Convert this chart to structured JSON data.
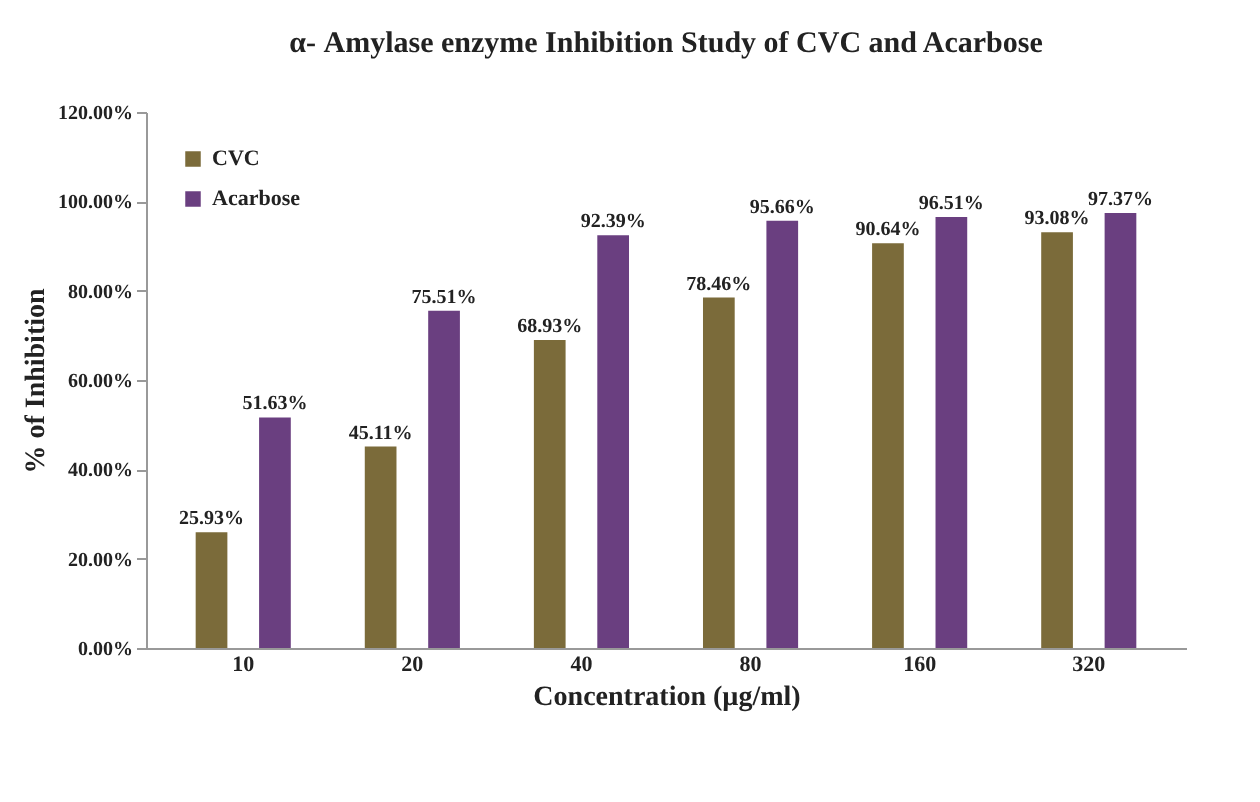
{
  "chart_data": {
    "type": "bar",
    "title": "α- Amylase enzyme Inhibition Study of CVC and Acarbose",
    "xlabel": "Concentration (µg/ml)",
    "ylabel": "% of Inhibition",
    "categories": [
      "10",
      "20",
      "40",
      "80",
      "160",
      "320"
    ],
    "series": [
      {
        "name": "CVC",
        "color": "#7b6b3a",
        "values": [
          25.93,
          45.11,
          68.93,
          78.46,
          90.64,
          93.08
        ],
        "value_labels": [
          "25.93%",
          "45.11%",
          "68.93%",
          "78.46%",
          "90.64%",
          "93.08%"
        ]
      },
      {
        "name": "Acarbose",
        "color": "#6a3f80",
        "values": [
          51.63,
          75.51,
          92.39,
          95.66,
          96.51,
          97.37
        ],
        "value_labels": [
          "51.63%",
          "75.51%",
          "92.39%",
          "95.66%",
          "96.51%",
          "97.37%"
        ]
      }
    ],
    "ylim": [
      0,
      120
    ],
    "yticks": [
      {
        "value": 0,
        "label": "0.00%"
      },
      {
        "value": 20,
        "label": "20.00%"
      },
      {
        "value": 40,
        "label": "40.00%"
      },
      {
        "value": 60,
        "label": "60.00%"
      },
      {
        "value": 80,
        "label": "80.00%"
      },
      {
        "value": 100,
        "label": "100.00%"
      },
      {
        "value": 120,
        "label": "120.00%"
      }
    ],
    "grid": false,
    "legend": "top left"
  }
}
